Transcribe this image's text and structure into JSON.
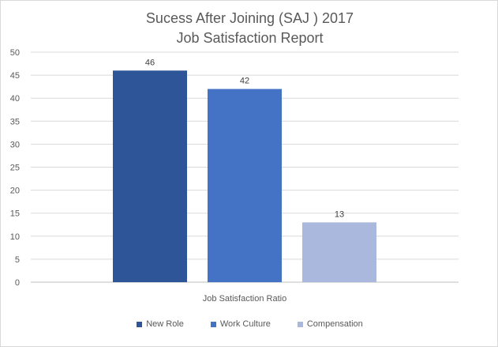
{
  "chart_data": {
    "type": "bar",
    "title_lines": [
      "Sucess After Joining (SAJ ) 2017",
      "Job Satisfaction Report"
    ],
    "xlabel": "Job Satisfaction Ratio",
    "ylabel": "",
    "ylim": [
      0,
      50
    ],
    "yticks": [
      0,
      5,
      10,
      15,
      20,
      25,
      30,
      35,
      40,
      45,
      50
    ],
    "grid": true,
    "legend_position": "bottom",
    "categories": [
      "Job Satisfaction Ratio"
    ],
    "series": [
      {
        "name": "New Role",
        "values": [
          46
        ],
        "color": "#2e5597"
      },
      {
        "name": "Work Culture",
        "values": [
          42
        ],
        "color": "#4472c4"
      },
      {
        "name": "Compensation",
        "values": [
          13
        ],
        "color": "#a9b8dc"
      }
    ],
    "data_labels": true
  }
}
